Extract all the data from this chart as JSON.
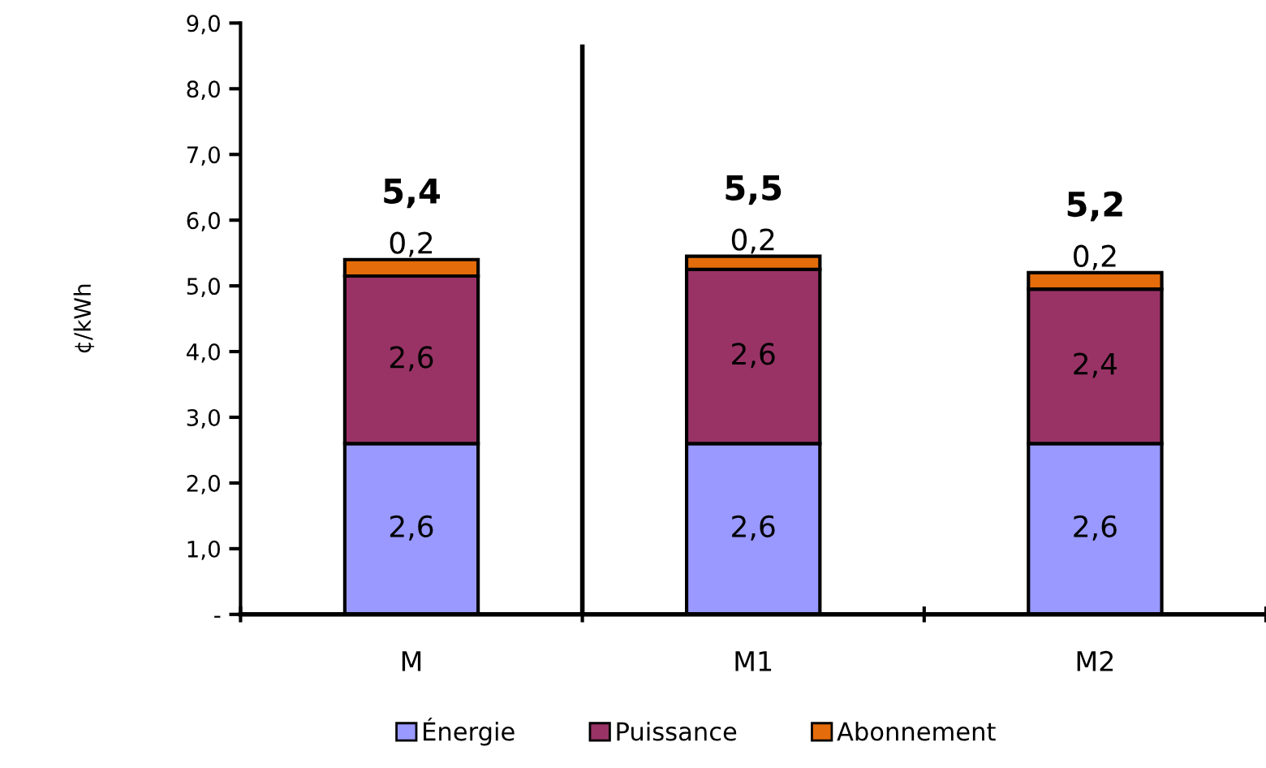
{
  "chart_data": {
    "type": "bar",
    "stacked": true,
    "ylabel": "¢/kWh",
    "categories": [
      "M",
      "M1",
      "M2"
    ],
    "series": [
      {
        "name": "Énergie",
        "color": "#9999ff",
        "values": [
          2.6,
          2.6,
          2.6
        ],
        "value_labels": [
          "2,6",
          "2,6",
          "2,6"
        ]
      },
      {
        "name": "Puissance",
        "color": "#993366",
        "values": [
          2.55,
          2.65,
          2.35
        ],
        "value_labels": [
          "2,6",
          "2,6",
          "2,4"
        ]
      },
      {
        "name": "Abonnement",
        "color": "#e46c0a",
        "values": [
          0.25,
          0.2,
          0.25
        ],
        "value_labels": [
          "0,2",
          "0,2",
          "0,2"
        ]
      }
    ],
    "totals": [
      "5,4",
      "5,5",
      "5,2"
    ],
    "ylim": [
      0,
      9
    ],
    "yticks": [
      {
        "value": 0,
        "label": "-"
      },
      {
        "value": 1,
        "label": "1,0"
      },
      {
        "value": 2,
        "label": "2,0"
      },
      {
        "value": 3,
        "label": "3,0"
      },
      {
        "value": 4,
        "label": "4,0"
      },
      {
        "value": 5,
        "label": "5,0"
      },
      {
        "value": 6,
        "label": "6,0"
      },
      {
        "value": 7,
        "label": "7,0"
      },
      {
        "value": 8,
        "label": "8,0"
      },
      {
        "value": 9,
        "label": "9,0"
      }
    ],
    "grid": false,
    "legend": "bottom"
  }
}
